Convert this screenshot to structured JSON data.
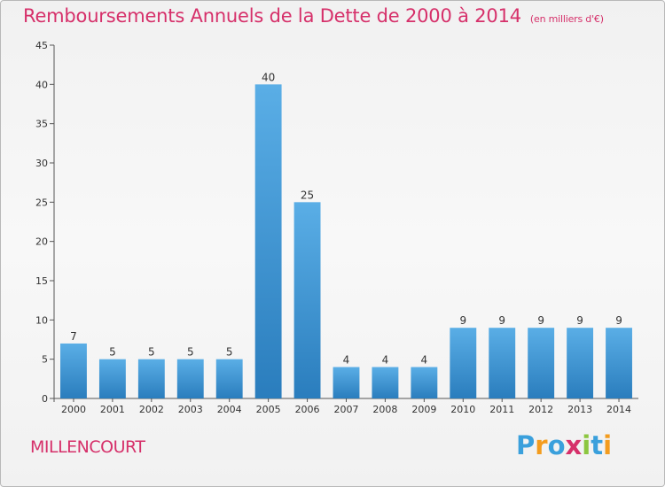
{
  "header": {
    "title": "Remboursements Annuels de la Dette de 2000 à 2014",
    "unit": "(en milliers d'€)"
  },
  "location": "MILLENCOURT",
  "logo": {
    "text": "Proxiti",
    "letters": [
      {
        "ch": "P",
        "color": "#3aa0dc"
      },
      {
        "ch": "r",
        "color": "#f39c1e"
      },
      {
        "ch": "o",
        "color": "#3aa0dc"
      },
      {
        "ch": "x",
        "color": "#d6306a"
      },
      {
        "ch": "i",
        "color": "#8cc63f"
      },
      {
        "ch": "t",
        "color": "#3aa0dc"
      },
      {
        "ch": "i",
        "color": "#f39c1e"
      }
    ]
  },
  "colors": {
    "bar_light": "#5aaee6",
    "bar_dark": "#2a7dbd",
    "title": "#d6306a"
  },
  "chart_data": {
    "type": "bar",
    "categories": [
      "2000",
      "2001",
      "2002",
      "2003",
      "2004",
      "2005",
      "2006",
      "2007",
      "2008",
      "2009",
      "2010",
      "2011",
      "2012",
      "2013",
      "2014"
    ],
    "values": [
      7,
      5,
      5,
      5,
      5,
      40,
      25,
      4,
      4,
      4,
      9,
      9,
      9,
      9,
      9
    ],
    "title": "Remboursements Annuels de la Dette de 2000 à 2014",
    "ylabel": "",
    "xlabel": "",
    "ylim": [
      0,
      45
    ],
    "yticks": [
      0,
      5,
      10,
      15,
      20,
      25,
      30,
      35,
      40,
      45
    ],
    "grid": false,
    "data_labels": true
  }
}
